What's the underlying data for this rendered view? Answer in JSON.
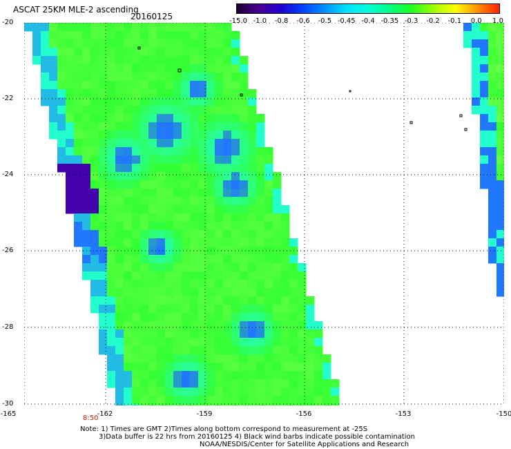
{
  "header": {
    "title": "ASCAT 25KM MLE-2 ascending",
    "date": "20160125"
  },
  "colorbar": {
    "labels": [
      "-15.0",
      "-1.0",
      "-0.8",
      "-0.6",
      "-0.5",
      "-0.45",
      "-0.4",
      "-0.35",
      "-0.3",
      "-0.2",
      "-0.1",
      "0.0",
      "1.0"
    ],
    "colors": [
      "#1a0030",
      "#4a0090",
      "#2000d0",
      "#0040ff",
      "#0090ff",
      "#00e0ff",
      "#00ffd8",
      "#00ff80",
      "#20ff20",
      "#a0ff00",
      "#ffff00",
      "#ff9000",
      "#ff2000"
    ]
  },
  "axes": {
    "lat_labels": [
      "-20",
      "-22",
      "-24",
      "-26",
      "-28",
      "-30"
    ],
    "lon_labels": [
      "-165",
      "-162",
      "-159",
      "-156",
      "-153",
      "-150"
    ],
    "lat_range": [
      -30,
      -20
    ],
    "lon_range": [
      -165,
      -150
    ]
  },
  "time_label": "8:50",
  "notes": [
    "Note: 1) Times are GMT 2)Times along bottom correspond to measurement at -25S",
    "3)Data buffer is 22 hrs from 20160125 4) Black wind barbs indicate possible contamination",
    "NOAA/NESDIS/Center for Satellite Applications and Research"
  ],
  "colors": {
    "swath_base": "#33ff33",
    "swath_light": "#66ff44",
    "swath_cyan": "#22ffcc",
    "swath_blue": "#2277ff",
    "swath_dark": "#4400aa"
  }
}
